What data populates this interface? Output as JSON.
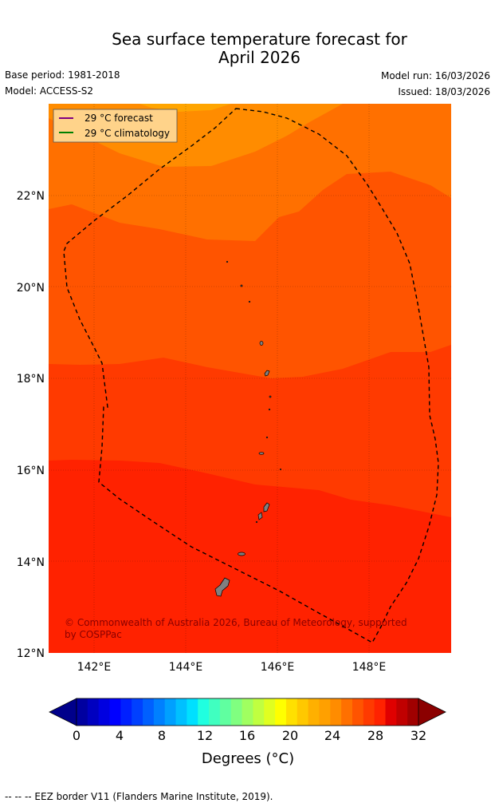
{
  "title": {
    "line1": "Sea surface temperature forecast for",
    "line2": "April 2026"
  },
  "meta": {
    "base_period": "Base period: 1981-2018",
    "model": "Model: ACCESS-S2",
    "model_run": "Model run: 16/03/2026",
    "issued": "Issued: 18/03/2026"
  },
  "legend": {
    "forecast_label": "29 °C  forecast",
    "climatology_label": "29 °C  climatology",
    "forecast_color": "#800080",
    "climatology_color": "#008000",
    "background": "#ffd38a"
  },
  "map": {
    "lon_range": [
      141.0,
      149.8
    ],
    "lat_range": [
      12.0,
      24.0
    ],
    "lat_ticks": [
      "12°N",
      "14°N",
      "16°N",
      "18°N",
      "20°N",
      "22°N"
    ],
    "lon_ticks": [
      "142°E",
      "144°E",
      "146°E",
      "148°E"
    ],
    "bands": [
      {
        "name": "28-29",
        "color": "#ff2200"
      },
      {
        "name": "27-28",
        "color": "#ff3a00"
      },
      {
        "name": "26-27",
        "color": "#ff5400"
      },
      {
        "name": "25-26",
        "color": "#ff7000"
      },
      {
        "name": "24-25",
        "color": "#ff8c00"
      },
      {
        "name": "23-24",
        "color": "#ffa500"
      }
    ],
    "copyright_line1": "© Commonwealth of Australia 2026, Bureau of Meteorology, supported",
    "copyright_line2": "by COSPPac"
  },
  "colorbar": {
    "ticks": [
      "0",
      "4",
      "8",
      "12",
      "16",
      "20",
      "24",
      "28",
      "32"
    ],
    "title": "Degrees (°C)",
    "under_color": "#00008b",
    "over_color": "#8b0000",
    "colors": [
      "#0000a0",
      "#0000c0",
      "#0000e0",
      "#0000ff",
      "#0020ff",
      "#0040ff",
      "#0060ff",
      "#0080ff",
      "#00a0ff",
      "#00c0ff",
      "#00e0ff",
      "#20ffe0",
      "#40ffc0",
      "#60ffa0",
      "#80ff80",
      "#a0ff60",
      "#c0ff40",
      "#e0ff20",
      "#ffff00",
      "#ffe000",
      "#ffc800",
      "#ffb000",
      "#ffa000",
      "#ff8c00",
      "#ff7000",
      "#ff5400",
      "#ff3a00",
      "#ff2200",
      "#e00000",
      "#c00000",
      "#a00000"
    ]
  },
  "footer": "--  --  -- EEZ border V11 (Flanders Marine Institute, 2019)."
}
